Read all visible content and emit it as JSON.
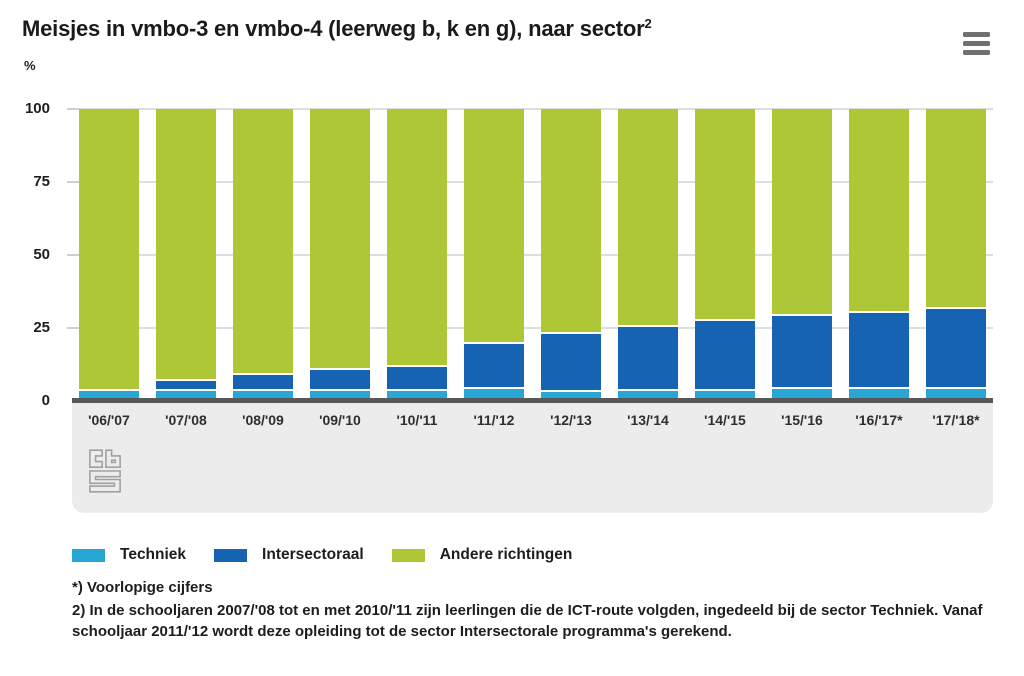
{
  "header": {
    "title": "Meisjes in vmbo-3 en vmbo-4 (leerweg b, k en g), naar sector",
    "title_superscript": "2",
    "unit_label": "%"
  },
  "chart_data": {
    "type": "bar",
    "stacked": true,
    "stacked_total": 100,
    "title": "Meisjes in vmbo-3 en vmbo-4 (leerweg b, k en g), naar sector 2)",
    "categories": [
      "'06/'07",
      "'07/'08",
      "'08/'09",
      "'09/'10",
      "'10/'11",
      "'11/'12",
      "'12/'13",
      "'13/'14",
      "'14/'15",
      "'15/'16",
      "'16/'17*",
      "'17/'18*"
    ],
    "series": [
      {
        "name": "Techniek",
        "color": "#28a7d4",
        "values": [
          3.5,
          3.5,
          3.5,
          3.5,
          3.5,
          4,
          3,
          3.5,
          3.5,
          4,
          4,
          4
        ]
      },
      {
        "name": "Intersectoraal",
        "color": "#1563b2",
        "values": [
          0,
          3.5,
          5.5,
          7,
          8,
          15.5,
          20,
          22,
          24,
          25,
          26,
          27.5
        ]
      },
      {
        "name": "Andere richtingen",
        "color": "#aec737",
        "values": [
          96.5,
          93,
          91,
          89.5,
          88.5,
          80.5,
          77,
          74.5,
          72.5,
          71,
          70,
          68.5
        ]
      }
    ],
    "xlabel": "",
    "ylabel": "%",
    "ylim": [
      0,
      100
    ],
    "yticks": [
      0,
      25,
      50,
      75,
      100
    ],
    "grid": true,
    "legend_position": "bottom",
    "colors_misc": {
      "axis_band": "#ececec",
      "baseline": "#58585a",
      "gridline": "#dedede",
      "menu_icon": "#707070",
      "logo": "#a1a1a1"
    }
  },
  "legend": {
    "items": [
      {
        "label": "Techniek"
      },
      {
        "label": "Intersectoraal"
      },
      {
        "label": "Andere richtingen"
      }
    ]
  },
  "footnotes": {
    "asterisk": "*) Voorlopige cijfers",
    "note2": "2) In de schooljaren 2007/'08 tot en met 2010/'11 zijn leerlingen die de ICT-route volgden, ingedeeld bij de sector Techniek. Vanaf schooljaar 2011/'12 wordt deze opleiding tot de sector Intersectorale programma's gerekend."
  },
  "branding": {
    "logo_name": "cbs-logo"
  }
}
